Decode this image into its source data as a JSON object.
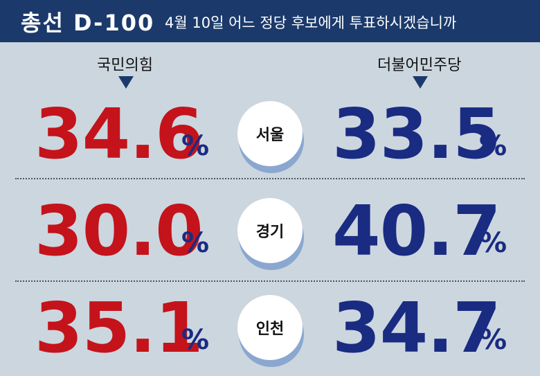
{
  "header": {
    "title": "총선 D-100",
    "subtitle": "4월 10일 어느 정당 후보에게 투표하시겠습니까"
  },
  "parties": {
    "left": "국민의힘",
    "right": "더불어민주당"
  },
  "percent_sign": "%",
  "colors": {
    "header_bg": "#1b3a6b",
    "background": "#ccd6df",
    "left_party_value": "#c4131b",
    "right_party_value": "#1a2b82",
    "circle_shadow": "#8aa7cf"
  },
  "chart_data": {
    "type": "table",
    "categories": [
      "서울",
      "경기",
      "인천"
    ],
    "series": [
      {
        "name": "국민의힘",
        "values": [
          34.6,
          30.0,
          35.1
        ]
      },
      {
        "name": "더불어민주당",
        "values": [
          33.5,
          40.7,
          34.7
        ]
      }
    ],
    "rows": [
      {
        "region": "서울",
        "left": "34.6",
        "right": "33.5"
      },
      {
        "region": "경기",
        "left": "30.0",
        "right": "40.7"
      },
      {
        "region": "인천",
        "left": "35.1",
        "right": "34.7"
      }
    ]
  }
}
